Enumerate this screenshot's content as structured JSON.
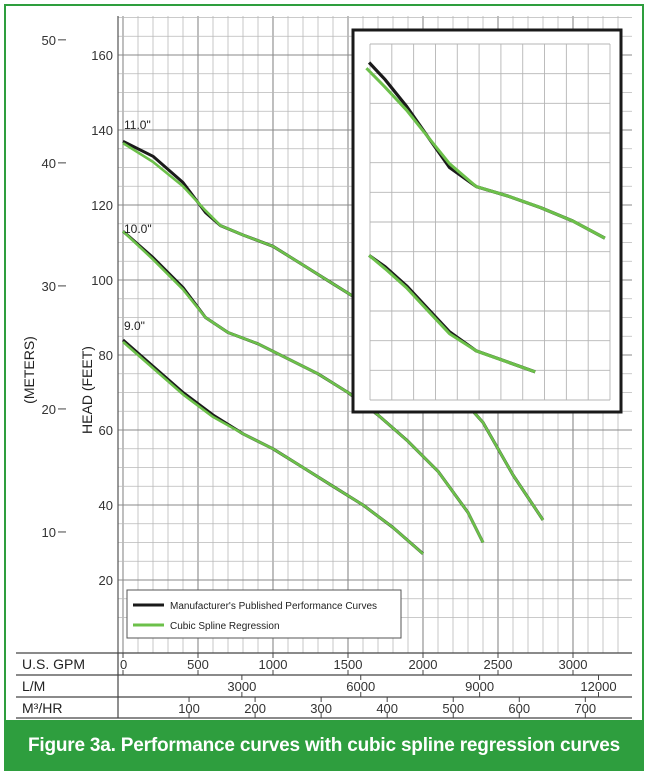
{
  "chart_data": {
    "type": "line",
    "caption": "Figure 3a. Performance curves with cubic spline regression curves",
    "ylabel": "HEAD (FEET)",
    "ylabel_secondary": "(METERS)",
    "ylim": [
      10,
      165
    ],
    "xlim": [
      0,
      3350
    ],
    "y_ticks_feet": [
      20,
      40,
      60,
      80,
      100,
      120,
      140,
      160
    ],
    "y_ticks_meters": [
      10,
      20,
      30,
      40,
      50
    ],
    "x_axes": [
      {
        "unit": "U.S. GPM",
        "ticks": [
          "0",
          "500",
          "1000",
          "1500",
          "2000",
          "2500",
          "3000"
        ],
        "gpm_positions": [
          0,
          500,
          1000,
          1500,
          2000,
          2500,
          3000
        ]
      },
      {
        "unit": "L/M",
        "ticks": [
          "3000",
          "6000",
          "9000",
          "12000"
        ],
        "gpm_positions": [
          792.5,
          1585,
          2377.5,
          3170
        ]
      },
      {
        "unit": "M³/HR",
        "ticks": [
          "100",
          "200",
          "300",
          "400",
          "500",
          "600",
          "700"
        ],
        "gpm_positions": [
          440.3,
          880.6,
          1320.9,
          1761.2,
          2201.5,
          2641.8,
          3082.1
        ]
      }
    ],
    "grid": true,
    "legend_position": "bottom-left",
    "series": [
      {
        "name": "Manufacturer's Published Performance Curves",
        "color": "#1a1a1a"
      },
      {
        "name": "Cubic Spline Regression",
        "color": "#6cc04a"
      }
    ],
    "curves": [
      {
        "label": "11.0\"",
        "published": {
          "x": [
            0,
            200,
            400,
            550,
            650,
            800,
            1000,
            1200,
            1400,
            1600,
            1800,
            2000,
            2200,
            2400,
            2600,
            2700,
            2800
          ],
          "y": [
            137,
            133,
            126,
            118,
            114.5,
            112,
            109,
            104,
            99,
            94,
            88,
            80,
            71,
            62,
            48,
            42,
            36
          ]
        },
        "regression": {
          "x": [
            0,
            200,
            400,
            550,
            650,
            800,
            1000,
            1200,
            1400,
            1600,
            1800,
            2000,
            2200,
            2400,
            2600,
            2700,
            2800
          ],
          "y": [
            136.5,
            131.5,
            125,
            118.5,
            114.5,
            112,
            109,
            104,
            99,
            94,
            88,
            80,
            71,
            62,
            48,
            42,
            36
          ]
        }
      },
      {
        "label": "10.0\"",
        "published": {
          "x": [
            0,
            200,
            400,
            550,
            700,
            900,
            1100,
            1300,
            1500,
            1700,
            1900,
            2100,
            2300,
            2400
          ],
          "y": [
            113,
            106,
            98,
            90,
            86,
            83,
            79,
            75,
            70,
            64,
            57,
            49,
            38,
            30
          ]
        },
        "regression": {
          "x": [
            0,
            200,
            400,
            550,
            700,
            900,
            1100,
            1300,
            1500,
            1700,
            1900,
            2100,
            2300,
            2400
          ],
          "y": [
            113,
            105.5,
            97.5,
            90,
            86,
            83,
            79,
            75,
            70,
            64,
            57,
            49,
            38,
            30
          ]
        }
      },
      {
        "label": "9.0\"",
        "published": {
          "x": [
            0,
            200,
            400,
            600,
            800,
            1000,
            1200,
            1400,
            1600,
            1800,
            2000
          ],
          "y": [
            84,
            77,
            70,
            64,
            59,
            55,
            50,
            45,
            40,
            34,
            27
          ]
        },
        "regression": {
          "x": [
            0,
            200,
            400,
            600,
            800,
            1000,
            1200,
            1400,
            1600,
            1800,
            2000
          ],
          "y": [
            83.5,
            76.5,
            69.5,
            63.5,
            59,
            55,
            50,
            45,
            40,
            34,
            27
          ]
        }
      }
    ],
    "inset": {
      "description_of_region": "zoomed view of upper-right portion",
      "curves": [
        {
          "published": {
            "x": [
              0.06,
              0.12,
              0.2,
              0.28,
              0.36,
              0.46,
              0.58,
              0.7,
              0.82,
              0.94
            ],
            "y": [
              0.915,
              0.87,
              0.8,
              0.72,
              0.64,
              0.59,
              0.565,
              0.535,
              0.5,
              0.455
            ]
          },
          "regression": {
            "x": [
              0.05,
              0.12,
              0.2,
              0.28,
              0.36,
              0.46,
              0.58,
              0.7,
              0.82,
              0.94
            ],
            "y": [
              0.9,
              0.85,
              0.79,
              0.72,
              0.65,
              0.59,
              0.565,
              0.535,
              0.5,
              0.455
            ]
          }
        },
        {
          "published": {
            "x": [
              0.06,
              0.12,
              0.2,
              0.28,
              0.36,
              0.46,
              0.58,
              0.68
            ],
            "y": [
              0.41,
              0.38,
              0.33,
              0.27,
              0.21,
              0.16,
              0.13,
              0.105
            ]
          },
          "regression": {
            "x": [
              0.06,
              0.12,
              0.2,
              0.28,
              0.36,
              0.46,
              0.58,
              0.68
            ],
            "y": [
              0.41,
              0.375,
              0.325,
              0.265,
              0.205,
              0.16,
              0.13,
              0.105
            ]
          }
        }
      ]
    }
  }
}
